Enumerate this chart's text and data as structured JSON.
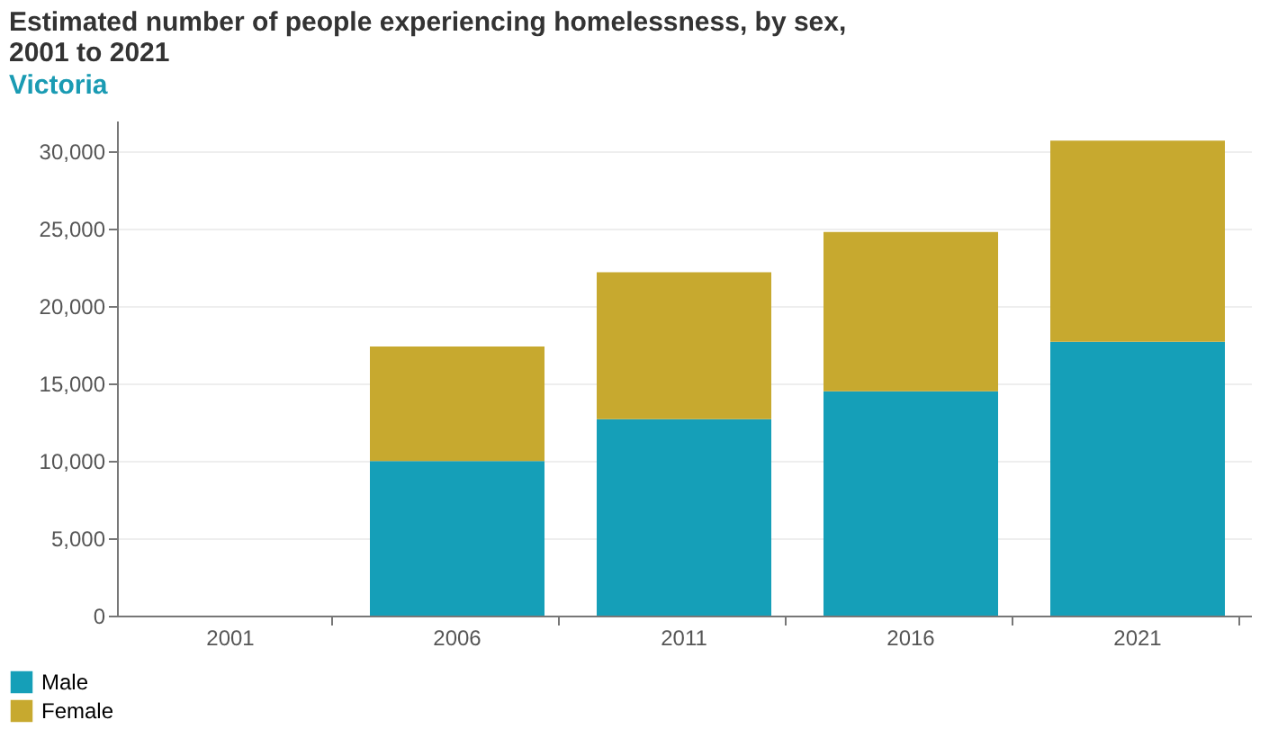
{
  "chart_data": {
    "type": "bar",
    "title": "Estimated number of people experiencing homelessness, by sex,\n2001 to 2021",
    "subtitle": "Victoria",
    "categories": [
      "2001",
      "2006",
      "2011",
      "2016",
      "2021"
    ],
    "series": [
      {
        "name": "Male",
        "color": "#159fb8",
        "values": [
          null,
          10000,
          12700,
          14500,
          17700
        ]
      },
      {
        "name": "Female",
        "color": "#c7a92f",
        "values": [
          null,
          7400,
          9500,
          10300,
          13000
        ]
      }
    ],
    "stacked": true,
    "ylim": [
      0,
      32000
    ],
    "yticks": [
      0,
      {
        "value": 5000,
        "label": "5,000"
      },
      {
        "value": 10000,
        "label": "10,000"
      },
      {
        "value": 15000,
        "label": "15,000"
      },
      {
        "value": 20000,
        "label": "20,000"
      },
      {
        "value": 25000,
        "label": "25,000"
      },
      {
        "value": 30000,
        "label": "30,000"
      }
    ],
    "grid": "y",
    "legend": "bottom left"
  }
}
